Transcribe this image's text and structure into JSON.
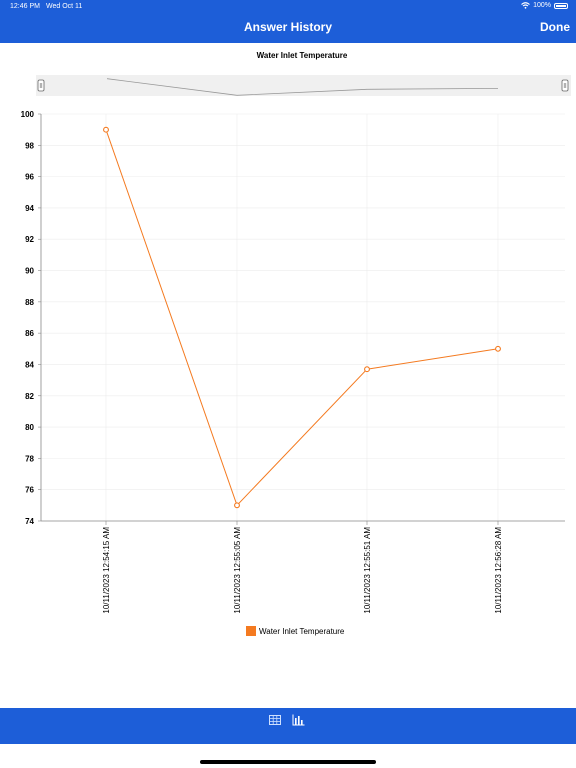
{
  "status": {
    "time": "12:46 PM",
    "date": "Wed Oct 11",
    "battery": "100%"
  },
  "nav": {
    "title": "Answer History",
    "done_label": "Done"
  },
  "colors": {
    "accent": "#1d5ed8",
    "series": "#f47a20"
  },
  "chart_data": {
    "type": "line",
    "title": "Water Inlet Temperature",
    "categories": [
      "10/11/2023 12:54:15 AM",
      "10/11/2023 12:55:05 AM",
      "10/11/2023 12:55:51 AM",
      "10/11/2023 12:56:28 AM"
    ],
    "series": [
      {
        "name": "Water Inlet Temperature",
        "values": [
          99,
          75,
          83.7,
          85
        ]
      }
    ],
    "ylim": [
      74,
      100
    ],
    "yticks": [
      100,
      98,
      96,
      94,
      92,
      90,
      88,
      86,
      84,
      82,
      80,
      78,
      76,
      74
    ],
    "grid": true,
    "legend": "bottom"
  },
  "tabs": {
    "table_icon": "table-icon",
    "chart_icon": "bar-chart-icon"
  }
}
